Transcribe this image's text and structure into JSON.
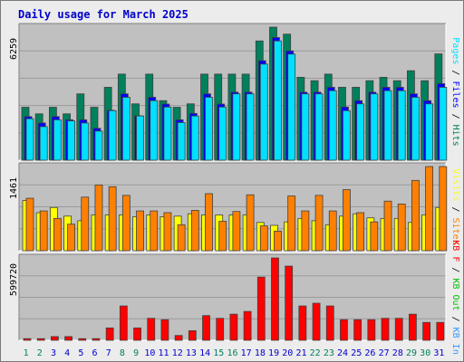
{
  "title": "Daily usage for March 2025",
  "colors": {
    "hits": "#00805c",
    "files": "#0000ff",
    "pages": "#00e0ff",
    "visits": "#ffff00",
    "sites": "#ff8000",
    "kb_in": "#3399ff",
    "kb_out": "#00c000",
    "kb_f": "#ff0000",
    "panel_bg": "#c0c0c0",
    "page_bg": "#ececec",
    "weekend_day": "#00805c",
    "weekday": "#0000cc"
  },
  "chart_data": [
    {
      "type": "bar",
      "panel": "top",
      "ymax_label": "6259",
      "ylim": [
        0,
        6259
      ],
      "right_labels": [
        {
          "text": "Pages",
          "color": "#00e0ff"
        },
        {
          "text": " / ",
          "color": "#000000"
        },
        {
          "text": "Files",
          "color": "#0000ff"
        },
        {
          "text": " / ",
          "color": "#000000"
        },
        {
          "text": "Hits",
          "color": "#00805c"
        }
      ],
      "categories": [
        "1",
        "2",
        "3",
        "4",
        "5",
        "6",
        "7",
        "8",
        "9",
        "10",
        "11",
        "12",
        "13",
        "14",
        "15",
        "16",
        "17",
        "18",
        "19",
        "20",
        "21",
        "22",
        "23",
        "24",
        "25",
        "26",
        "27",
        "28",
        "29",
        "30",
        "31"
      ],
      "series": [
        {
          "name": "Hits",
          "values": [
            2490,
            2180,
            2490,
            2180,
            3120,
            2490,
            3430,
            4050,
            2650,
            4050,
            2800,
            2490,
            2650,
            4050,
            4050,
            4050,
            4050,
            5610,
            6260,
            5930,
            3900,
            3740,
            4050,
            3430,
            3430,
            3740,
            3900,
            3740,
            4210,
            3740,
            5000
          ]
        },
        {
          "name": "Files",
          "values": [
            2050,
            1750,
            2050,
            1900,
            1900,
            1500,
            2350,
            3120,
            2090,
            2960,
            2640,
            1900,
            2200,
            3120,
            2640,
            3200,
            3200,
            4680,
            5770,
            5140,
            3200,
            3200,
            3430,
            2500,
            2800,
            3200,
            3430,
            3430,
            3120,
            2800,
            3600
          ]
        },
        {
          "name": "Pages",
          "values": [
            1950,
            1580,
            1900,
            1850,
            1750,
            1370,
            2330,
            2960,
            2080,
            2800,
            2500,
            1770,
            2080,
            2960,
            2500,
            3120,
            3120,
            4520,
            5610,
            4990,
            3120,
            3120,
            3270,
            2330,
            2650,
            3120,
            3270,
            3270,
            2960,
            2650,
            3430
          ]
        }
      ]
    },
    {
      "type": "bar",
      "panel": "middle",
      "ymax_label": "1461",
      "ylim": [
        0,
        1461
      ],
      "right_labels": [
        {
          "text": "Visits",
          "color": "#ffff00"
        },
        {
          "text": " / ",
          "color": "#000000"
        },
        {
          "text": "Sites",
          "color": "#ff8000"
        }
      ],
      "categories": [
        "1",
        "2",
        "3",
        "4",
        "5",
        "6",
        "7",
        "8",
        "9",
        "10",
        "11",
        "12",
        "13",
        "14",
        "15",
        "16",
        "17",
        "18",
        "19",
        "20",
        "21",
        "22",
        "23",
        "24",
        "25",
        "26",
        "27",
        "28",
        "29",
        "30",
        "31"
      ],
      "series": [
        {
          "name": "Visits",
          "values": [
            870,
            660,
            750,
            600,
            520,
            620,
            620,
            620,
            590,
            620,
            590,
            600,
            640,
            620,
            620,
            620,
            620,
            490,
            440,
            500,
            560,
            520,
            450,
            600,
            640,
            570,
            560,
            560,
            490,
            620,
            750
          ]
        },
        {
          "name": "Sites",
          "values": [
            910,
            690,
            560,
            460,
            930,
            1140,
            1110,
            960,
            690,
            690,
            660,
            450,
            700,
            990,
            510,
            680,
            970,
            430,
            340,
            950,
            690,
            960,
            690,
            1060,
            660,
            500,
            860,
            810,
            1220,
            1460,
            1460
          ]
        }
      ]
    },
    {
      "type": "bar",
      "panel": "bottom",
      "ymax_label": "599720",
      "ylim": [
        0,
        599720
      ],
      "right_labels": [
        {
          "text": "KB F",
          "color": "#ff0000"
        },
        {
          "text": " / ",
          "color": "#000000"
        },
        {
          "text": "KB Out",
          "color": "#00c000"
        },
        {
          "text": " / ",
          "color": "#000000"
        },
        {
          "text": "KB In",
          "color": "#3399ff"
        }
      ],
      "categories": [
        "1",
        "2",
        "3",
        "4",
        "5",
        "6",
        "7",
        "8",
        "9",
        "10",
        "11",
        "12",
        "13",
        "14",
        "15",
        "16",
        "17",
        "18",
        "19",
        "20",
        "21",
        "22",
        "23",
        "24",
        "25",
        "26",
        "27",
        "28",
        "29",
        "30",
        "31"
      ],
      "series": [
        {
          "name": "KB F",
          "values": [
            12000,
            12000,
            27000,
            27000,
            12000,
            12000,
            90000,
            250000,
            90000,
            160000,
            150000,
            35000,
            70000,
            180000,
            160000,
            190000,
            210000,
            460000,
            599720,
            540000,
            250000,
            270000,
            250000,
            150000,
            150000,
            150000,
            160000,
            160000,
            190000,
            130000,
            130000
          ]
        }
      ]
    }
  ],
  "x_labels": [
    {
      "text": "1",
      "weekend": true
    },
    {
      "text": "2",
      "weekend": true
    },
    {
      "text": "3",
      "weekend": false
    },
    {
      "text": "4",
      "weekend": false
    },
    {
      "text": "5",
      "weekend": false
    },
    {
      "text": "6",
      "weekend": false
    },
    {
      "text": "7",
      "weekend": false
    },
    {
      "text": "8",
      "weekend": true
    },
    {
      "text": "9",
      "weekend": true
    },
    {
      "text": "10",
      "weekend": false
    },
    {
      "text": "11",
      "weekend": false
    },
    {
      "text": "12",
      "weekend": false
    },
    {
      "text": "13",
      "weekend": false
    },
    {
      "text": "14",
      "weekend": false
    },
    {
      "text": "15",
      "weekend": true
    },
    {
      "text": "16",
      "weekend": true
    },
    {
      "text": "17",
      "weekend": false
    },
    {
      "text": "18",
      "weekend": false
    },
    {
      "text": "19",
      "weekend": false
    },
    {
      "text": "20",
      "weekend": false
    },
    {
      "text": "21",
      "weekend": false
    },
    {
      "text": "22",
      "weekend": true
    },
    {
      "text": "23",
      "weekend": true
    },
    {
      "text": "24",
      "weekend": false
    },
    {
      "text": "25",
      "weekend": false
    },
    {
      "text": "26",
      "weekend": false
    },
    {
      "text": "27",
      "weekend": false
    },
    {
      "text": "28",
      "weekend": false
    },
    {
      "text": "29",
      "weekend": true
    },
    {
      "text": "30",
      "weekend": true
    },
    {
      "text": "31",
      "weekend": false
    }
  ]
}
